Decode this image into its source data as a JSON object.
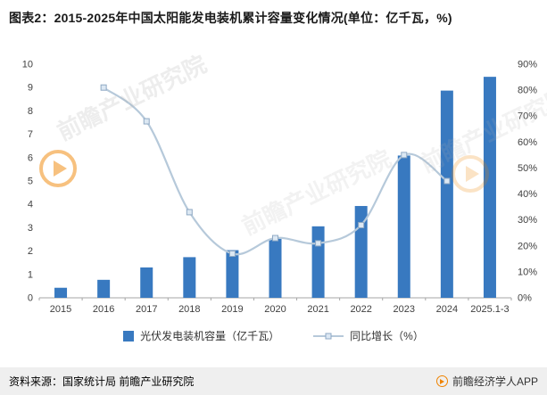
{
  "title": "图表2：2015-2025年中国太阳能发电装机累计容量变化情况(单位：亿千瓦，%)",
  "chart_data": {
    "type": "bar",
    "subtype": "bar+line combo with dual y-axes",
    "categories": [
      "2015",
      "2016",
      "2017",
      "2018",
      "2019",
      "2020",
      "2021",
      "2022",
      "2023",
      "2024",
      "2025.1-3"
    ],
    "series": [
      {
        "name": "光伏发电装机容量（亿千瓦）",
        "type": "bar",
        "axis": "left",
        "values": [
          0.43,
          0.77,
          1.3,
          1.74,
          2.04,
          2.53,
          3.06,
          3.93,
          6.09,
          8.87,
          9.46
        ]
      },
      {
        "name": "同比增长（%）",
        "type": "line",
        "axis": "right",
        "values": [
          null,
          81,
          68,
          33,
          17,
          23,
          21,
          28,
          55,
          45,
          null
        ]
      }
    ],
    "left_axis": {
      "min": 0,
      "max": 10,
      "ticks": [
        "0",
        "1",
        "2",
        "3",
        "4",
        "5",
        "6",
        "7",
        "8",
        "9",
        "10"
      ]
    },
    "right_axis": {
      "min": 0,
      "max": 90,
      "ticks": [
        "0%",
        "10%",
        "20%",
        "30%",
        "40%",
        "50%",
        "60%",
        "70%",
        "80%",
        "90%"
      ]
    },
    "grid": false,
    "legend_position": "bottom",
    "legend": [
      "光伏发电装机容量（亿千瓦）",
      "同比增长（%）"
    ]
  },
  "colors": {
    "bar": "#3879c0",
    "line": "#b6c9da",
    "marker_fill": "#dce8f3",
    "marker_stroke": "#8fa9c4",
    "watermark_orange": "#f08300"
  },
  "watermark": {
    "text": "前瞻产业研究院"
  },
  "footer": {
    "source": "资料来源：国家统计局 前瞻产业研究院",
    "brand": "前瞻经济学人APP"
  }
}
